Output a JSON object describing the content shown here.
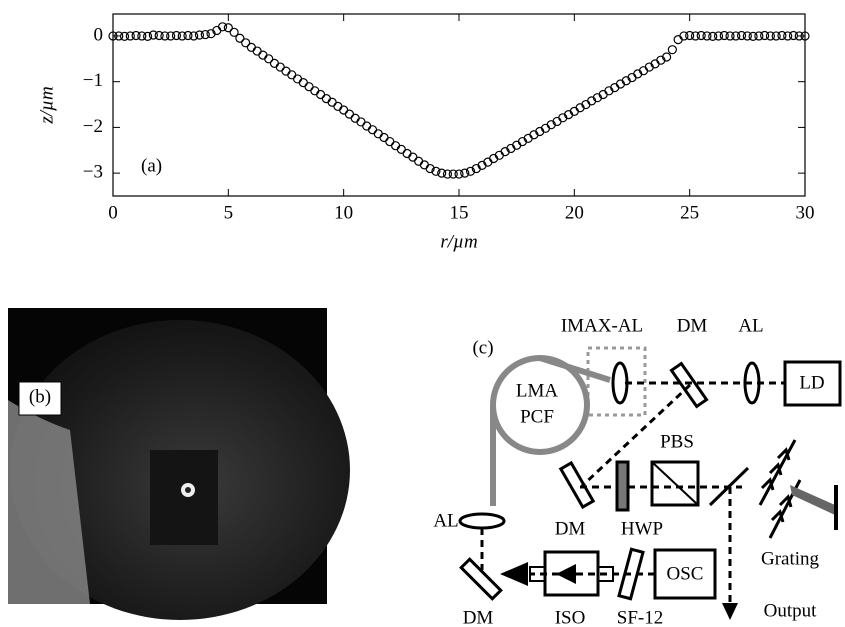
{
  "chart_data": {
    "type": "scatter",
    "annotation": "(a)",
    "x_label": "r/µm",
    "y_label": "z/µm",
    "color": "#000000",
    "x": [
      0,
      0.25,
      0.5,
      0.75,
      1,
      1.25,
      1.5,
      1.75,
      2,
      2.25,
      2.5,
      2.75,
      3,
      3.25,
      3.5,
      3.75,
      4,
      4.25,
      4.5,
      4.75,
      5,
      5.25,
      5.5,
      5.75,
      6,
      6.25,
      6.5,
      6.75,
      7,
      7.25,
      7.5,
      7.75,
      8,
      8.25,
      8.5,
      8.75,
      9,
      9.25,
      9.5,
      9.75,
      10,
      10.25,
      10.5,
      10.75,
      11,
      11.25,
      11.5,
      11.75,
      12,
      12.25,
      12.5,
      12.75,
      13,
      13.25,
      13.5,
      13.75,
      14,
      14.25,
      14.5,
      14.75,
      15,
      15.25,
      15.5,
      15.75,
      16,
      16.25,
      16.5,
      16.75,
      17,
      17.25,
      17.5,
      17.75,
      18,
      18.25,
      18.5,
      18.75,
      19,
      19.25,
      19.5,
      19.75,
      20,
      20.25,
      20.5,
      20.75,
      21,
      21.25,
      21.5,
      21.75,
      22,
      22.25,
      22.5,
      22.75,
      23,
      23.25,
      23.5,
      23.75,
      24,
      24.25,
      24.5,
      24.75,
      25,
      25.25,
      25.5,
      25.75,
      26,
      26.25,
      26.5,
      26.75,
      27,
      27.25,
      27.5,
      27.75,
      28,
      28.25,
      28.5,
      28.75,
      29,
      29.25,
      29.5,
      29.75,
      30
    ],
    "values": [
      0,
      0,
      -0.01,
      0,
      0.01,
      0,
      -0.01,
      0.02,
      0.01,
      0,
      0,
      0.01,
      0,
      0.01,
      0,
      0.02,
      0.03,
      0.05,
      0.12,
      0.2,
      0.18,
      0.08,
      -0.05,
      -0.15,
      -0.25,
      -0.33,
      -0.42,
      -0.5,
      -0.6,
      -0.68,
      -0.77,
      -0.85,
      -0.94,
      -1.02,
      -1.11,
      -1.2,
      -1.28,
      -1.37,
      -1.45,
      -1.54,
      -1.62,
      -1.71,
      -1.8,
      -1.88,
      -1.97,
      -2.05,
      -2.14,
      -2.22,
      -2.31,
      -2.4,
      -2.48,
      -2.57,
      -2.65,
      -2.74,
      -2.82,
      -2.9,
      -2.96,
      -3,
      -3.02,
      -3.02,
      -3.02,
      -3,
      -2.96,
      -2.9,
      -2.83,
      -2.76,
      -2.68,
      -2.61,
      -2.53,
      -2.46,
      -2.39,
      -2.31,
      -2.24,
      -2.16,
      -2.09,
      -2.02,
      -1.94,
      -1.87,
      -1.79,
      -1.72,
      -1.65,
      -1.57,
      -1.5,
      -1.42,
      -1.35,
      -1.28,
      -1.2,
      -1.13,
      -1.05,
      -0.98,
      -0.91,
      -0.83,
      -0.76,
      -0.68,
      -0.61,
      -0.53,
      -0.46,
      -0.3,
      -0.08,
      0,
      0.01,
      0,
      0.01,
      0,
      -0.01,
      0,
      0.01,
      0,
      0,
      0.01,
      0,
      -0.01,
      0,
      0.01,
      0,
      0,
      0.01,
      0,
      0.01,
      0,
      0
    ],
    "xlim": [
      0,
      30
    ],
    "ylim": [
      -3.5,
      0.48
    ],
    "xticks": [
      0,
      5,
      10,
      15,
      20,
      25,
      30
    ],
    "yticks": [
      0,
      {
        "value": -1,
        "label": "−1"
      },
      {
        "value": -2,
        "label": "−2"
      },
      {
        "value": -3,
        "label": "−3"
      }
    ]
  },
  "image_panel": {
    "label": "(b)"
  },
  "diagram": {
    "labels": [
      "(c)",
      "IMAX-AL",
      "DM",
      "AL",
      "LD",
      "LMA",
      "PCF",
      "PBS",
      "HWP",
      "Grating",
      "AL",
      "DM",
      "DM",
      "ISO",
      "SF-12",
      "OSC",
      "Output"
    ]
  }
}
